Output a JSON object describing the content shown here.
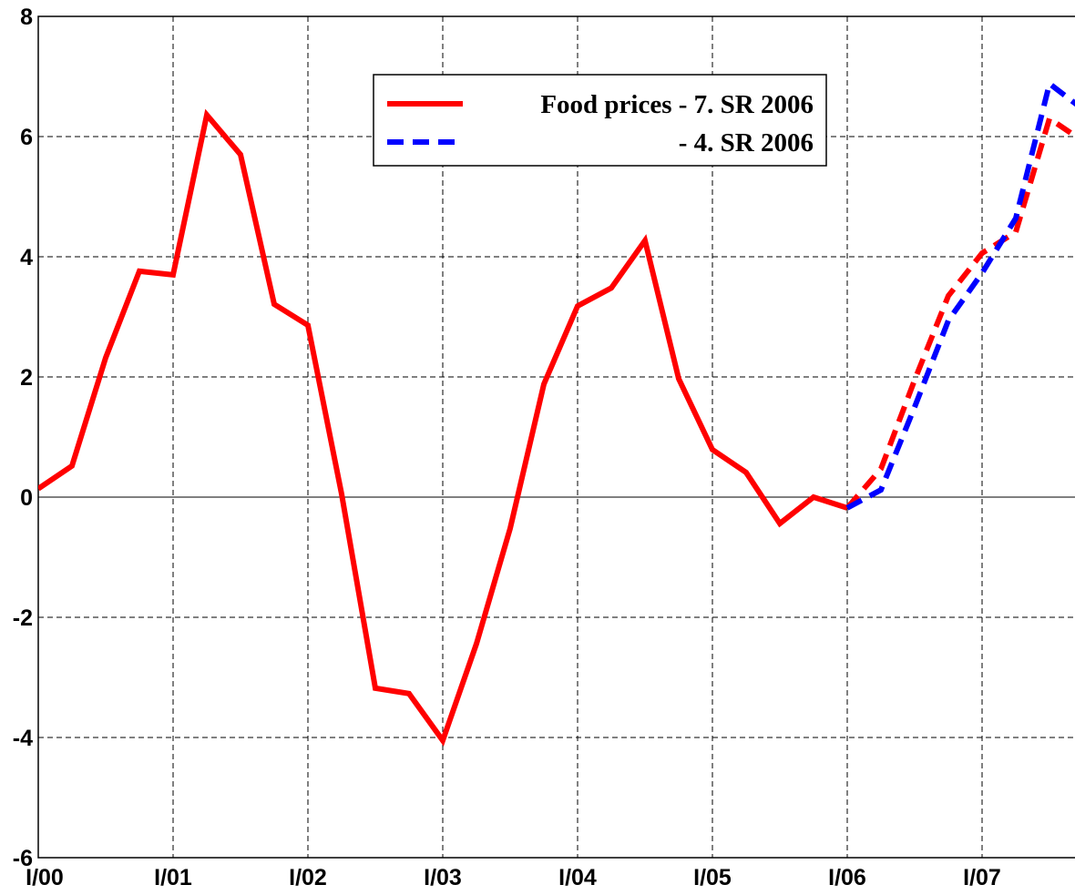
{
  "chart_data": {
    "type": "line",
    "categories": [
      "I/00",
      null,
      null,
      null,
      "I/01",
      null,
      null,
      null,
      "I/02",
      null,
      null,
      null,
      "I/03",
      null,
      null,
      null,
      "I/04",
      null,
      null,
      null,
      "I/05",
      null,
      null,
      null,
      "I/06",
      null,
      null,
      null,
      "I/07",
      null,
      null,
      null
    ],
    "series": [
      {
        "name": "Food prices - 7. SR 2006",
        "color": "#ff0000",
        "dashed": false,
        "values": [
          0.14,
          0.52,
          2.32,
          3.76,
          3.7,
          6.36,
          5.7,
          3.21,
          2.86,
          0.05,
          -3.18,
          -3.27,
          -4.05,
          -2.44,
          -0.52,
          1.88,
          3.18,
          3.48,
          4.27,
          1.97,
          0.79,
          0.41,
          -0.44,
          0.0,
          -0.18,
          null,
          null,
          null,
          null,
          null,
          null,
          null
        ]
      },
      {
        "color": "#ff0000",
        "dashed": true,
        "values": [
          null,
          null,
          null,
          null,
          null,
          null,
          null,
          null,
          null,
          null,
          null,
          null,
          null,
          null,
          null,
          null,
          null,
          null,
          null,
          null,
          null,
          null,
          null,
          null,
          -0.18,
          0.47,
          1.95,
          3.35,
          4.06,
          4.41,
          6.3,
          5.92
        ]
      },
      {
        "name": "- 4. SR 2006",
        "color": "#0000ff",
        "dashed": true,
        "values": [
          null,
          null,
          null,
          null,
          null,
          null,
          null,
          null,
          null,
          null,
          null,
          null,
          null,
          null,
          null,
          null,
          null,
          null,
          null,
          null,
          null,
          null,
          null,
          null,
          -0.18,
          0.12,
          1.5,
          2.94,
          3.73,
          4.64,
          6.88,
          6.45
        ]
      }
    ],
    "ylim": [
      -6,
      8
    ],
    "yticks": [
      -6,
      -4,
      -2,
      0,
      2,
      4,
      6,
      8
    ],
    "grid": true
  }
}
